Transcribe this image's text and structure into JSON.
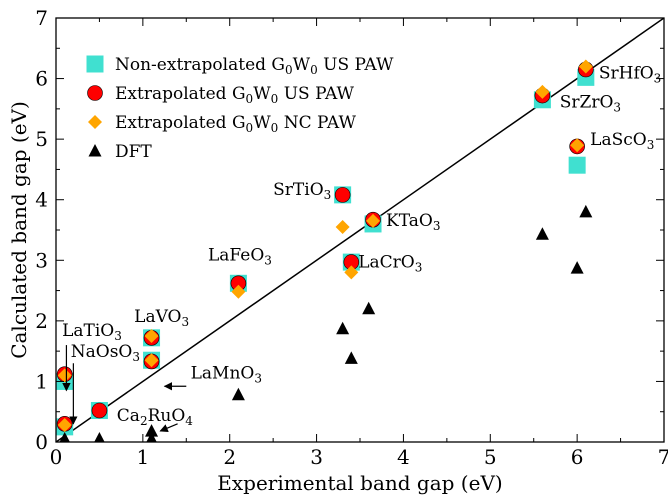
{
  "chart_data": {
    "type": "scatter",
    "title": "",
    "xlabel": "Experimental band gap (eV)",
    "ylabel": "Calculated band gap (eV)",
    "xlim": [
      0,
      7
    ],
    "ylim": [
      0,
      7
    ],
    "xticks": [
      0,
      1,
      2,
      3,
      4,
      5,
      6,
      7
    ],
    "yticks": [
      0,
      1,
      2,
      3,
      4,
      5,
      6,
      7
    ],
    "grid": false,
    "legend_position": "top-left",
    "reference_line": {
      "from": [
        0,
        0
      ],
      "to": [
        7,
        7
      ]
    },
    "series": [
      {
        "name": "Non-extrapolated G0W0 US PAW",
        "name_parts": [
          [
            "Non-extrapolated G",
            ""
          ],
          [
            "0",
            "sub"
          ],
          [
            "W",
            ""
          ],
          [
            "0",
            "sub"
          ],
          [
            " US PAW",
            ""
          ]
        ],
        "marker": "square",
        "color": "#40E0D0",
        "x": [
          0.1,
          0.1,
          0.5,
          1.1,
          1.1,
          2.1,
          3.3,
          3.4,
          3.65,
          5.6,
          6.0,
          6.1
        ],
        "y": [
          1.0,
          0.25,
          0.52,
          1.35,
          1.72,
          2.62,
          4.08,
          2.97,
          3.6,
          5.65,
          4.57,
          6.02
        ]
      },
      {
        "name": "Extrapolated G0W0 US PAW",
        "name_parts": [
          [
            "Extrapolated G",
            ""
          ],
          [
            "0",
            "sub"
          ],
          [
            "W",
            ""
          ],
          [
            "0",
            "sub"
          ],
          [
            " US PAW",
            ""
          ]
        ],
        "marker": "circle",
        "color": "#FF0000",
        "x": [
          0.1,
          0.1,
          0.5,
          1.1,
          1.1,
          2.1,
          3.3,
          3.4,
          3.65,
          5.6,
          6.0,
          6.1
        ],
        "y": [
          1.12,
          0.3,
          0.52,
          1.33,
          1.72,
          2.62,
          4.08,
          2.97,
          3.67,
          5.72,
          4.88,
          6.15
        ]
      },
      {
        "name": "Extrapolated G0W0 NC PAW",
        "name_parts": [
          [
            "Extrapolated G",
            ""
          ],
          [
            "0",
            "sub"
          ],
          [
            "W",
            ""
          ],
          [
            "0",
            "sub"
          ],
          [
            " NC PAW",
            ""
          ]
        ],
        "marker": "diamond",
        "color": "#FFA500",
        "x": [
          0.1,
          0.1,
          1.1,
          1.1,
          2.1,
          3.3,
          3.4,
          3.65,
          5.6,
          6.0,
          6.1
        ],
        "y": [
          1.1,
          0.28,
          1.35,
          1.75,
          2.48,
          3.55,
          2.8,
          3.65,
          5.78,
          4.9,
          6.2
        ]
      },
      {
        "name": "DFT",
        "name_parts": [
          [
            "DFT",
            ""
          ]
        ],
        "marker": "triangle",
        "color": "#000000",
        "x": [
          0.1,
          0.5,
          1.1,
          1.1,
          2.1,
          3.3,
          3.4,
          3.6,
          5.6,
          6.0,
          6.1
        ],
        "y": [
          0.05,
          0.05,
          0.05,
          0.18,
          0.78,
          1.87,
          1.38,
          2.2,
          3.43,
          2.87,
          3.8
        ]
      }
    ],
    "annotations": [
      {
        "name": "label-LaTiO3",
        "parts": [
          [
            "LaTiO",
            ""
          ],
          [
            "3",
            "sub"
          ]
        ],
        "x": 0.07,
        "y": 1.75
      },
      {
        "name": "label-LaVO3",
        "parts": [
          [
            "LaVO",
            ""
          ],
          [
            "3",
            "sub"
          ]
        ],
        "x": 0.9,
        "y": 1.98
      },
      {
        "name": "label-NaOsO3",
        "parts": [
          [
            "NaOsO",
            ""
          ],
          [
            "3",
            "sub"
          ]
        ],
        "x": 0.17,
        "y": 1.4
      },
      {
        "name": "label-LaMnO3",
        "parts": [
          [
            "LaMnO",
            ""
          ],
          [
            "3",
            "sub"
          ]
        ],
        "x": 1.55,
        "y": 1.05
      },
      {
        "name": "label-Ca2RuO4",
        "parts": [
          [
            "Ca",
            ""
          ],
          [
            "2",
            "sub"
          ],
          [
            "RuO",
            ""
          ],
          [
            "4",
            "sub"
          ]
        ],
        "x": 0.7,
        "y": 0.35
      },
      {
        "name": "label-LaFeO3",
        "parts": [
          [
            "LaFeO",
            ""
          ],
          [
            "3",
            "sub"
          ]
        ],
        "x": 1.75,
        "y": 3.0
      },
      {
        "name": "label-SrTiO3",
        "parts": [
          [
            "SrTiO",
            ""
          ],
          [
            "3",
            "sub"
          ]
        ],
        "x": 2.5,
        "y": 4.08
      },
      {
        "name": "label-KTaO3",
        "parts": [
          [
            "KTaO",
            ""
          ],
          [
            "3",
            "sub"
          ]
        ],
        "x": 3.8,
        "y": 3.57
      },
      {
        "name": "label-LaCrO3",
        "parts": [
          [
            "LaCrO",
            ""
          ],
          [
            "3",
            "sub"
          ]
        ],
        "x": 3.48,
        "y": 2.88
      },
      {
        "name": "label-SrZrO3",
        "parts": [
          [
            "SrZrO",
            ""
          ],
          [
            "3",
            "sub"
          ]
        ],
        "x": 5.8,
        "y": 5.52
      },
      {
        "name": "label-SrHfO3",
        "parts": [
          [
            "SrHfO",
            ""
          ],
          [
            "3",
            "sub"
          ]
        ],
        "x": 6.25,
        "y": 6.0
      },
      {
        "name": "label-LaScO3",
        "parts": [
          [
            "LaScO",
            ""
          ],
          [
            "3",
            "sub"
          ]
        ],
        "x": 6.15,
        "y": 4.9
      }
    ],
    "arrows": [
      {
        "name": "arrow-LaTiO3",
        "from": [
          0.12,
          1.6
        ],
        "to": [
          0.12,
          0.85
        ]
      },
      {
        "name": "arrow-NaOsO3",
        "from": [
          0.2,
          1.3
        ],
        "to": [
          0.2,
          0.3
        ]
      },
      {
        "name": "arrow-LaMnO3",
        "from": [
          1.5,
          0.92
        ],
        "to": [
          1.25,
          0.92
        ]
      },
      {
        "name": "arrow-Ca2RuO4",
        "from": [
          1.4,
          0.3
        ],
        "to": [
          1.2,
          0.18
        ]
      }
    ]
  }
}
